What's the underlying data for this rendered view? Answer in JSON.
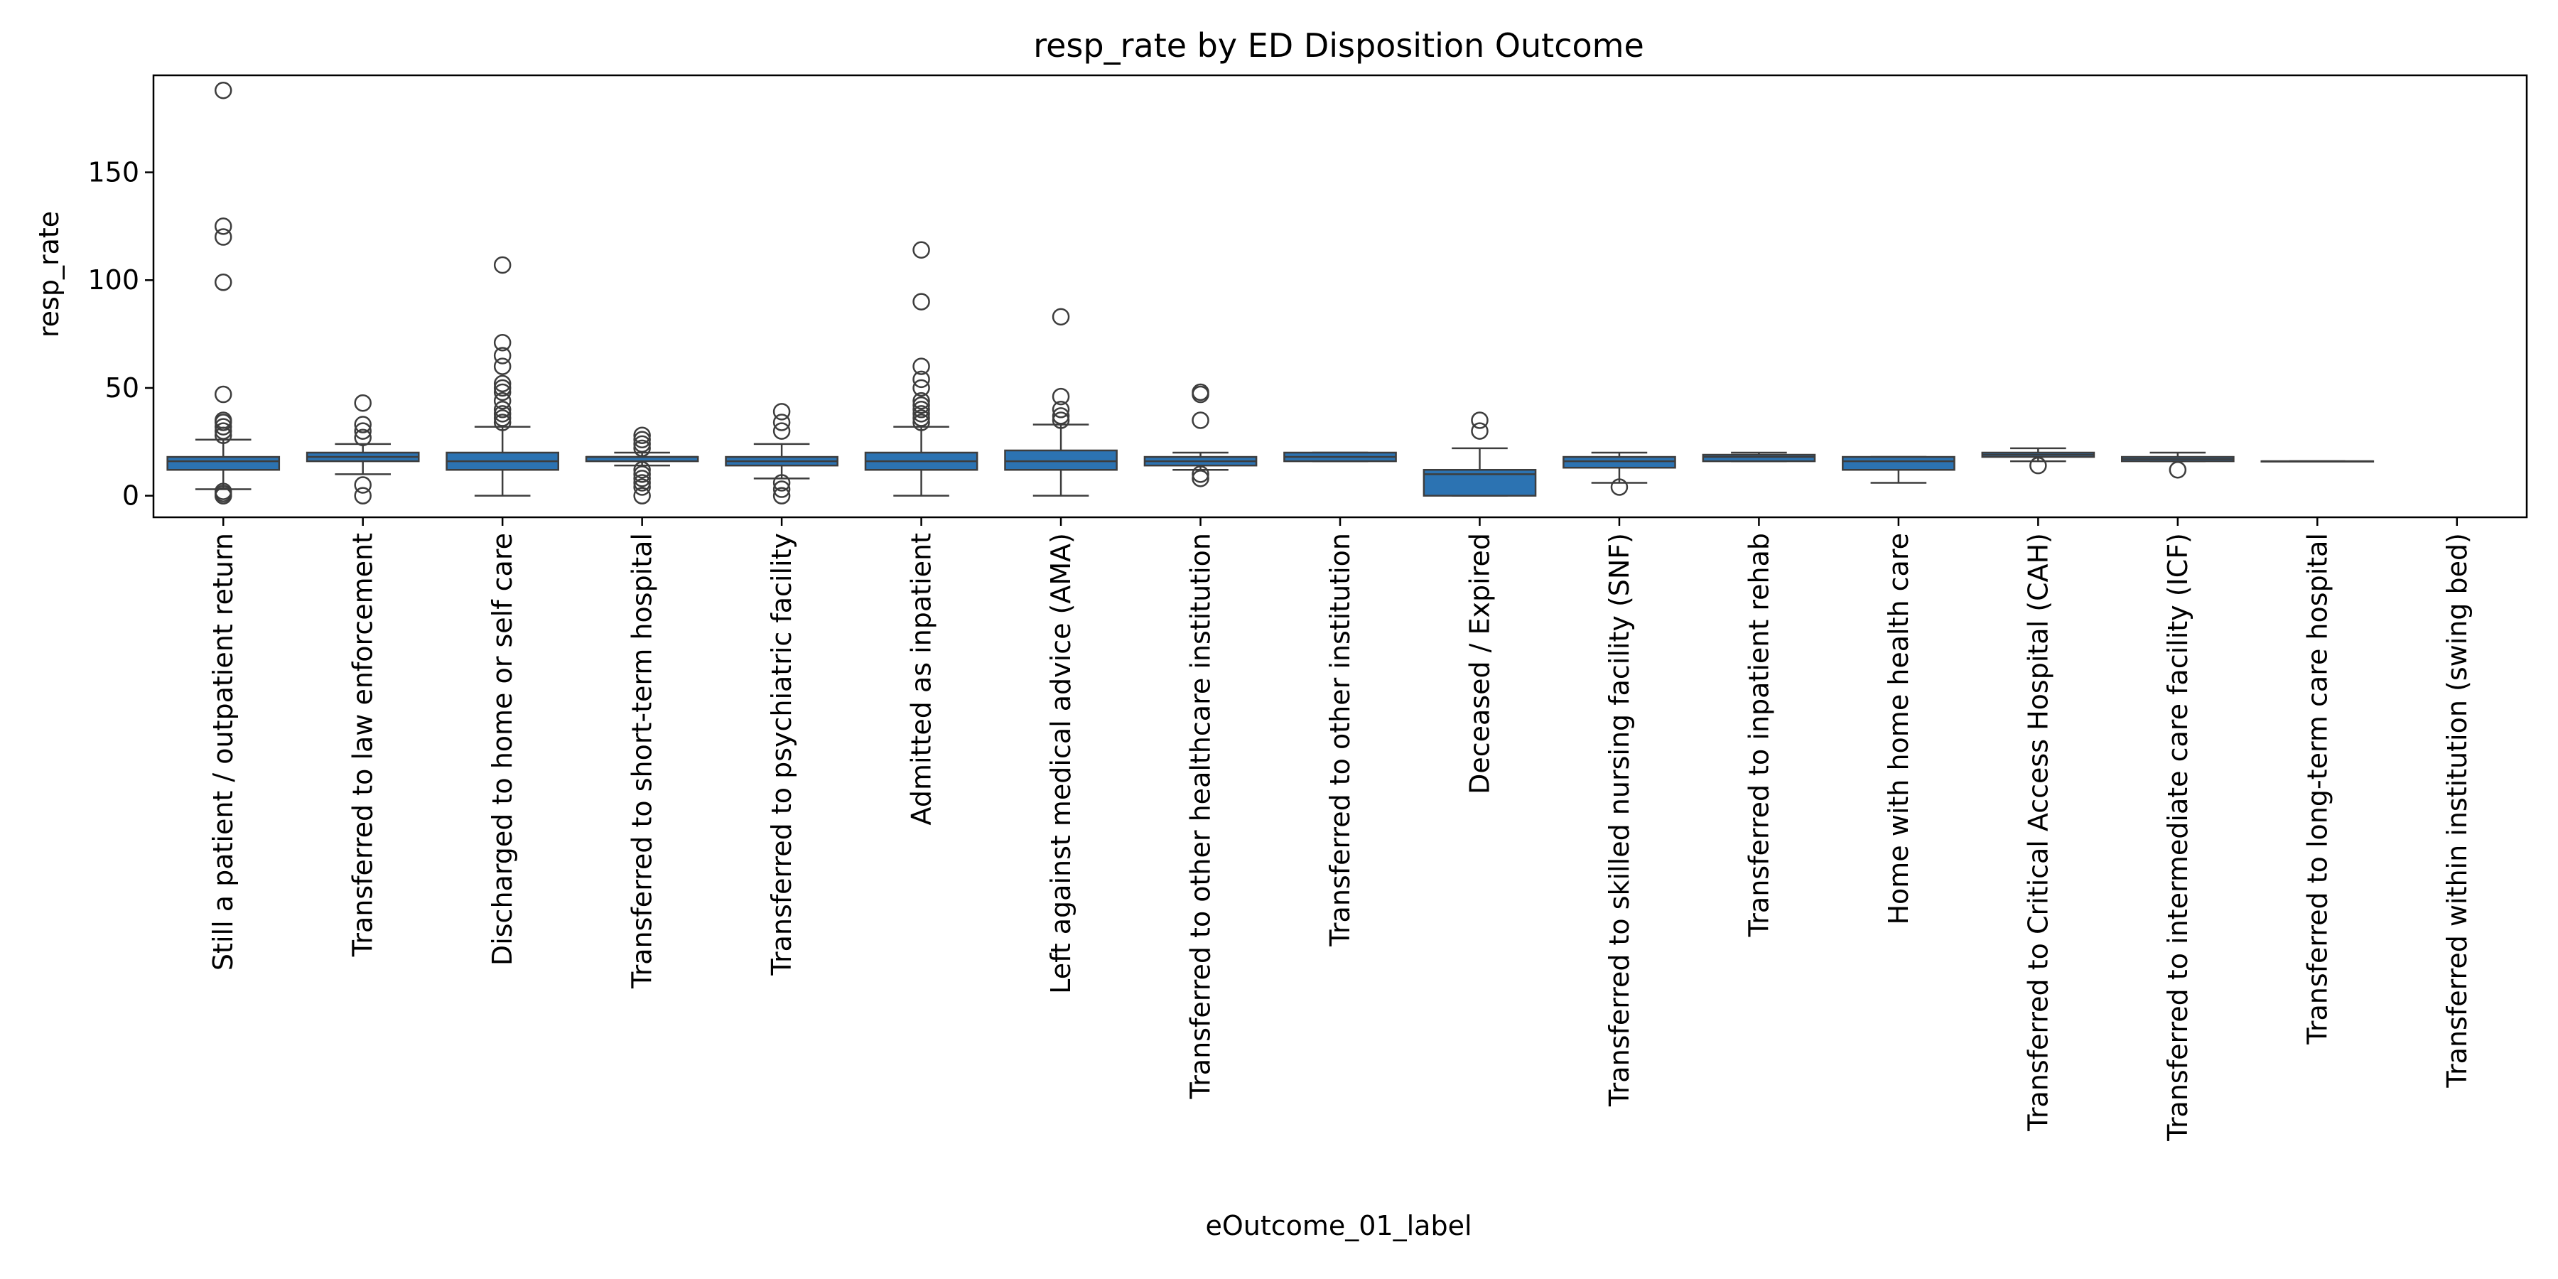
{
  "chart_data": {
    "type": "box",
    "title": "resp_rate by ED Disposition Outcome",
    "xlabel": "eOutcome_01_label",
    "ylabel": "resp_rate",
    "ylim": [
      -10,
      195
    ],
    "yticks": [
      0,
      50,
      100,
      150
    ],
    "grid": false,
    "box_color": "#2c73b2",
    "categories": [
      {
        "label": "Still a patient / outpatient return",
        "whislo": 3,
        "q1": 12,
        "med": 16,
        "q3": 18,
        "whishi": 26,
        "fliers": [
          0,
          0,
          1,
          2,
          28,
          30,
          32,
          34,
          35,
          47,
          99,
          120,
          125,
          188
        ]
      },
      {
        "label": "Transferred to law enforcement",
        "whislo": 10,
        "q1": 16,
        "med": 18,
        "q3": 20,
        "whishi": 24,
        "fliers": [
          0,
          5,
          27,
          30,
          33,
          43
        ]
      },
      {
        "label": "Discharged to home or self care",
        "whislo": 0,
        "q1": 12,
        "med": 16,
        "q3": 20,
        "whishi": 32,
        "fliers": [
          34,
          36,
          38,
          40,
          44,
          48,
          50,
          52,
          60,
          65,
          71,
          107
        ]
      },
      {
        "label": "Transferred to short-term hospital",
        "whislo": 14,
        "q1": 16,
        "med": 18,
        "q3": 18,
        "whishi": 20,
        "fliers": [
          0,
          4,
          6,
          8,
          10,
          12,
          22,
          24,
          26,
          28
        ]
      },
      {
        "label": "Transferred to psychiatric facility",
        "whislo": 8,
        "q1": 14,
        "med": 16,
        "q3": 18,
        "whishi": 24,
        "fliers": [
          0,
          3,
          6,
          30,
          34,
          39
        ]
      },
      {
        "label": "Admitted as inpatient",
        "whislo": 0,
        "q1": 12,
        "med": 16,
        "q3": 20,
        "whishi": 32,
        "fliers": [
          34,
          36,
          38,
          40,
          42,
          44,
          50,
          54,
          60,
          90,
          114
        ]
      },
      {
        "label": "Left against medical advice (AMA)",
        "whislo": 0,
        "q1": 12,
        "med": 16,
        "q3": 21,
        "whishi": 33,
        "fliers": [
          35,
          37,
          40,
          46,
          83
        ]
      },
      {
        "label": "Transferred to other healthcare institution",
        "whislo": 12,
        "q1": 14,
        "med": 16,
        "q3": 18,
        "whishi": 20,
        "fliers": [
          8,
          10,
          35,
          47,
          48
        ]
      },
      {
        "label": "Transferred to other institution",
        "whislo": 16,
        "q1": 16,
        "med": 18,
        "q3": 20,
        "whishi": 20,
        "fliers": []
      },
      {
        "label": "Deceased / Expired",
        "whislo": 0,
        "q1": 0,
        "med": 10,
        "q3": 12,
        "whishi": 22,
        "fliers": [
          30,
          35
        ]
      },
      {
        "label": "Transferred to skilled nursing facility (SNF)",
        "whislo": 6,
        "q1": 13,
        "med": 16,
        "q3": 18,
        "whishi": 20,
        "fliers": [
          4
        ]
      },
      {
        "label": "Transferred to inpatient rehab",
        "whislo": 16,
        "q1": 16,
        "med": 18,
        "q3": 19,
        "whishi": 20,
        "fliers": []
      },
      {
        "label": "Home with home health care",
        "whislo": 6,
        "q1": 12,
        "med": 16,
        "q3": 18,
        "whishi": 18,
        "fliers": []
      },
      {
        "label": "Transferred to Critical Access Hospital (CAH)",
        "whislo": 16,
        "q1": 18,
        "med": 19,
        "q3": 20,
        "whishi": 22,
        "fliers": [
          14
        ]
      },
      {
        "label": "Transferred to intermediate care facility (ICF)",
        "whislo": 16,
        "q1": 16,
        "med": 17,
        "q3": 18,
        "whishi": 20,
        "fliers": [
          12
        ]
      },
      {
        "label": "Transferred to long-term care hospital",
        "whislo": 16,
        "q1": 16,
        "med": 16,
        "q3": 16,
        "whishi": 16,
        "fliers": []
      },
      {
        "label": "Transferred within institution (swing bed)",
        "whislo": null,
        "q1": null,
        "med": null,
        "q3": null,
        "whishi": null,
        "fliers": []
      }
    ]
  }
}
